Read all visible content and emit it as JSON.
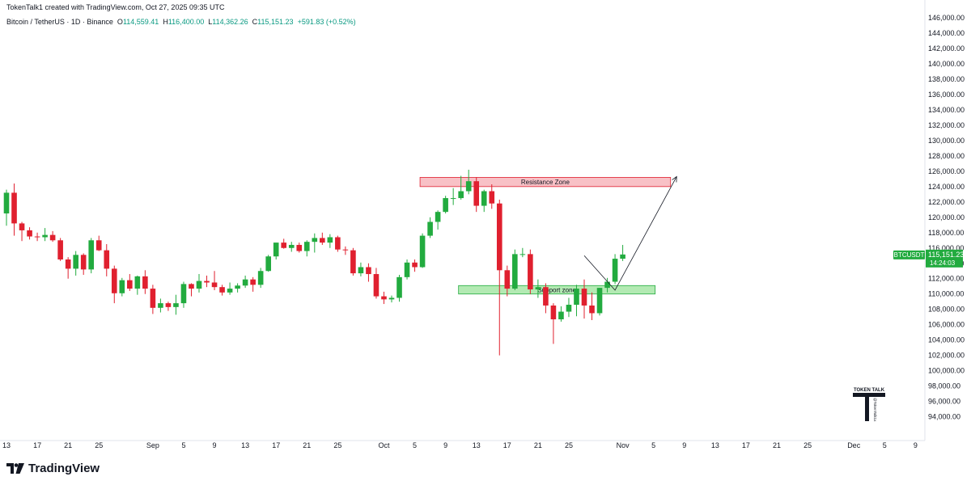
{
  "header": {
    "attribution": "TokenTalk1 created with TradingView.com, Oct 27, 2025 09:35 UTC",
    "symbol": "Bitcoin / TetherUS · 1D · Binance",
    "ohlc": [
      {
        "k": "O",
        "v": "114,559.41"
      },
      {
        "k": "H",
        "v": "116,400.00"
      },
      {
        "k": "L",
        "v": "114,362.26"
      },
      {
        "k": "C",
        "v": "115,151.23"
      }
    ],
    "change": "+591.83 (+0.52%)"
  },
  "price_tag": {
    "symbol": "BTCUSDT",
    "price": "115,151.23",
    "countdown": "14:24:03"
  },
  "watermark": {
    "brand": "TOKEN TALK",
    "sub": "@TokenTalk1x"
  },
  "footer": {
    "logo_text": "TradingView"
  },
  "colors": {
    "up": "#22ab3f",
    "down": "#e0202f",
    "resistance": "#f7b6bc",
    "support": "#a6e6a6"
  },
  "chart_data": {
    "type": "candlestick",
    "symbol": "BTCUSDT",
    "interval": "1D",
    "ylim": [
      93500,
      147000
    ],
    "y_ticks": [
      "146,000.00",
      "144,000.00",
      "142,000.00",
      "140,000.00",
      "138,000.00",
      "136,000.00",
      "134,000.00",
      "132,000.00",
      "130,000.00",
      "128,000.00",
      "126,000.00",
      "124,000.00",
      "122,000.00",
      "120,000.00",
      "118,000.00",
      "116,000.00",
      "114,000.00",
      "112,000.00",
      "110,000.00",
      "108,000.00",
      "106,000.00",
      "104,000.00",
      "102,000.00",
      "100,000.00",
      "98,000.00",
      "96,000.00",
      "94,000.00"
    ],
    "x_ticks": [
      {
        "i": 0,
        "label": "13"
      },
      {
        "i": 4,
        "label": "17"
      },
      {
        "i": 8,
        "label": "21"
      },
      {
        "i": 12,
        "label": "25"
      },
      {
        "i": 19,
        "label": "Sep"
      },
      {
        "i": 23,
        "label": "5"
      },
      {
        "i": 27,
        "label": "9"
      },
      {
        "i": 31,
        "label": "13"
      },
      {
        "i": 35,
        "label": "17"
      },
      {
        "i": 39,
        "label": "21"
      },
      {
        "i": 43,
        "label": "25"
      },
      {
        "i": 49,
        "label": "Oct"
      },
      {
        "i": 53,
        "label": "5"
      },
      {
        "i": 57,
        "label": "9"
      },
      {
        "i": 61,
        "label": "13"
      },
      {
        "i": 65,
        "label": "17"
      },
      {
        "i": 69,
        "label": "21"
      },
      {
        "i": 73,
        "label": "25"
      },
      {
        "i": 80,
        "label": "Nov"
      },
      {
        "i": 84,
        "label": "5"
      },
      {
        "i": 88,
        "label": "9"
      },
      {
        "i": 92,
        "label": "13"
      },
      {
        "i": 96,
        "label": "17"
      },
      {
        "i": 100,
        "label": "21"
      },
      {
        "i": 104,
        "label": "25"
      },
      {
        "i": 110,
        "label": "Dec"
      },
      {
        "i": 114,
        "label": "5"
      },
      {
        "i": 118,
        "label": "9"
      }
    ],
    "candles": [
      [
        120500,
        123600,
        118900,
        123200
      ],
      [
        123200,
        124400,
        117600,
        119200
      ],
      [
        119200,
        119400,
        116900,
        118300
      ],
      [
        118300,
        118700,
        117100,
        117500
      ],
      [
        117500,
        118000,
        116900,
        117400
      ],
      [
        117400,
        118600,
        116900,
        117700
      ],
      [
        117700,
        118200,
        116800,
        117000
      ],
      [
        117000,
        117300,
        114300,
        114500
      ],
      [
        114500,
        114800,
        112000,
        113300
      ],
      [
        113300,
        115600,
        112400,
        115100
      ],
      [
        115100,
        115300,
        112500,
        113200
      ],
      [
        113200,
        117300,
        112700,
        117000
      ],
      [
        117000,
        117600,
        115600,
        115700
      ],
      [
        115700,
        116500,
        112300,
        113300
      ],
      [
        113300,
        113700,
        108800,
        110100
      ],
      [
        110100,
        112100,
        109700,
        111800
      ],
      [
        111800,
        112600,
        110400,
        110700
      ],
      [
        110700,
        112400,
        109900,
        112300
      ],
      [
        112300,
        113100,
        110000,
        110700
      ],
      [
        110700,
        111200,
        107400,
        108200
      ],
      [
        108200,
        109400,
        107600,
        108800
      ],
      [
        108800,
        109000,
        107800,
        108300
      ],
      [
        108300,
        109900,
        107300,
        108800
      ],
      [
        108800,
        111600,
        108200,
        111300
      ],
      [
        111300,
        111400,
        109700,
        110700
      ],
      [
        110700,
        112600,
        110200,
        111700
      ],
      [
        111700,
        112400,
        110900,
        111500
      ],
      [
        111500,
        113000,
        110500,
        110900
      ],
      [
        110900,
        111200,
        109800,
        110200
      ],
      [
        110200,
        111500,
        109900,
        110700
      ],
      [
        110700,
        111400,
        110200,
        111100
      ],
      [
        111100,
        112400,
        110800,
        111900
      ],
      [
        111900,
        112200,
        110300,
        111200
      ],
      [
        111200,
        113400,
        110800,
        113000
      ],
      [
        113000,
        115100,
        112900,
        114900
      ],
      [
        114900,
        116700,
        114500,
        116700
      ],
      [
        116700,
        117200,
        115900,
        116000
      ],
      [
        116000,
        116800,
        115500,
        116400
      ],
      [
        116400,
        116700,
        115400,
        115600
      ],
      [
        115600,
        117000,
        114900,
        116800
      ],
      [
        116800,
        117900,
        115400,
        117300
      ],
      [
        117300,
        118000,
        116400,
        116700
      ],
      [
        116700,
        117800,
        116000,
        117400
      ],
      [
        117400,
        117600,
        115500,
        115800
      ],
      [
        115800,
        116200,
        115100,
        115700
      ],
      [
        115700,
        116000,
        112400,
        112700
      ],
      [
        112700,
        114100,
        112300,
        113500
      ],
      [
        113500,
        114000,
        111600,
        112600
      ],
      [
        112600,
        113400,
        109400,
        109700
      ],
      [
        109700,
        110300,
        108700,
        109300
      ],
      [
        109300,
        109800,
        108900,
        109500
      ],
      [
        109500,
        112500,
        109000,
        112200
      ],
      [
        112200,
        114500,
        111900,
        114100
      ],
      [
        114100,
        114500,
        112900,
        113500
      ],
      [
        113500,
        117900,
        113400,
        117600
      ],
      [
        117600,
        120000,
        117300,
        119400
      ],
      [
        119400,
        120900,
        118400,
        120700
      ],
      [
        120700,
        122800,
        120500,
        122500
      ],
      [
        122500,
        123800,
        121600,
        122500
      ],
      [
        122500,
        125400,
        122300,
        123400
      ],
      [
        123400,
        126200,
        123000,
        124700
      ],
      [
        124700,
        125200,
        120700,
        121500
      ],
      [
        121500,
        123600,
        120700,
        123400
      ],
      [
        123400,
        124300,
        121100,
        121800
      ],
      [
        121800,
        122300,
        102000,
        113100
      ],
      [
        113100,
        113700,
        109700,
        110700
      ],
      [
        110700,
        115800,
        110500,
        115200
      ],
      [
        115200,
        116000,
        114800,
        115200
      ],
      [
        115200,
        115800,
        110000,
        110600
      ],
      [
        110600,
        111900,
        109500,
        110900
      ],
      [
        110900,
        111400,
        107500,
        108500
      ],
      [
        108500,
        108800,
        103500,
        106700
      ],
      [
        106700,
        108400,
        106400,
        107700
      ],
      [
        107700,
        109500,
        107000,
        108600
      ],
      [
        108600,
        111200,
        107100,
        110700
      ],
      [
        110700,
        111900,
        106800,
        108500
      ],
      [
        108500,
        110200,
        106600,
        107500
      ],
      [
        107500,
        110800,
        107200,
        110800
      ],
      [
        110800,
        112100,
        110200,
        111600
      ],
      [
        111600,
        115200,
        111300,
        114600
      ],
      [
        114600,
        116400,
        114300,
        115151
      ]
    ],
    "annotations": [
      {
        "type": "zone",
        "label": "Resistance Zone",
        "y_low": 124000,
        "y_high": 125200,
        "x_from": "Oct 6",
        "x_to": "Nov 7"
      },
      {
        "type": "zone",
        "label": "Support zone",
        "y_low": 110000,
        "y_high": 111100,
        "x_from": "Oct 11",
        "x_to": "Nov 5"
      },
      {
        "type": "projection",
        "points": [
          {
            "x": "Oct 27",
            "y": 115000
          },
          {
            "x": "Oct 31",
            "y": 110500
          },
          {
            "x": "Nov 8",
            "y": 125300
          }
        ]
      }
    ]
  }
}
